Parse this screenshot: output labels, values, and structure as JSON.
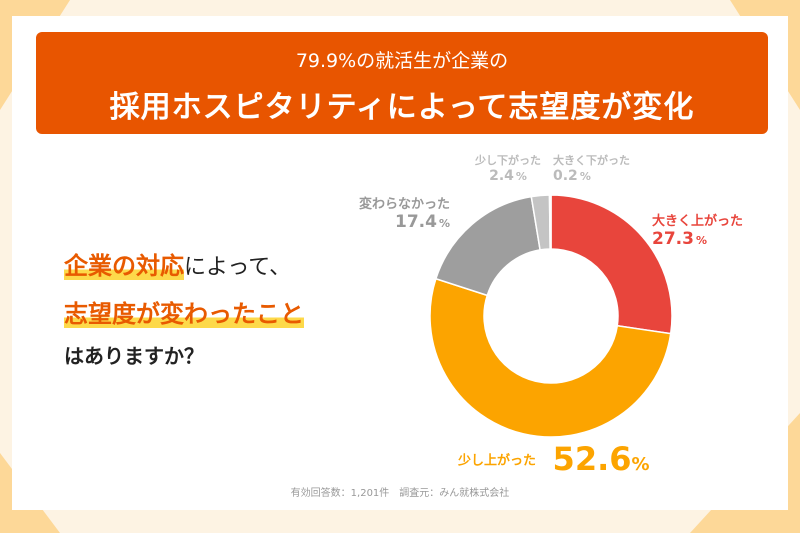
{
  "header": {
    "subtitle": "79.9%の就活生が企業の",
    "title": "採用ホスピタリティによって志望度が変化"
  },
  "question": {
    "line1_highlight": "企業の対応",
    "line1_rest": "によって、",
    "line2_highlight": "志望度が変わったこと",
    "line3": "はありますか？"
  },
  "footer": "有効回答数：1,201件　調査元：みん就株式会社",
  "chart_data": {
    "type": "pie",
    "donut": true,
    "title": "",
    "categories": [
      "大きく上がった",
      "少し上がった",
      "変わらなかった",
      "少し下がった",
      "大きく下がった"
    ],
    "values": [
      27.3,
      52.6,
      17.4,
      2.4,
      0.2
    ],
    "value_labels": [
      "27.3",
      "52.6",
      "17.4",
      "2.4",
      "0.2"
    ],
    "unit": "%",
    "colors": [
      "#e8453c",
      "#fca400",
      "#9e9e9e",
      "#c4c4c4",
      "#dcdcdc"
    ],
    "start": "top, clockwise"
  }
}
